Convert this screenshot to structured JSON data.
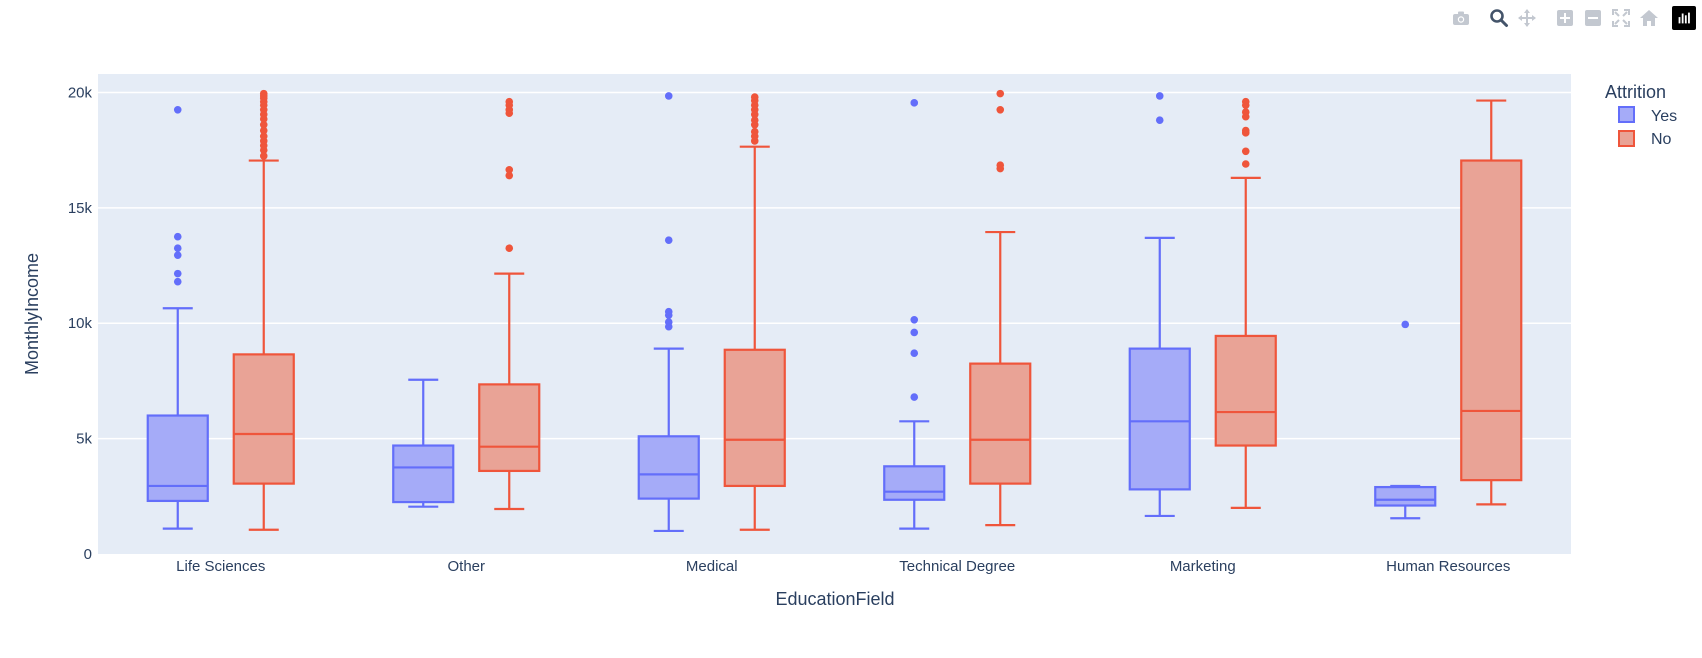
{
  "chart_data": {
    "type": "box",
    "title": "",
    "xlabel": "EducationField",
    "ylabel": "MonthlyIncome",
    "ylim": [
      0,
      20800
    ],
    "yticks": [
      0,
      5000,
      10000,
      15000,
      20000
    ],
    "ytick_labels": [
      "0",
      "5k",
      "10k",
      "15k",
      "20k"
    ],
    "grid": true,
    "categories": [
      "Life Sciences",
      "Other",
      "Medical",
      "Technical Degree",
      "Marketing",
      "Human Resources"
    ],
    "legend": {
      "title": "Attrition",
      "position": "top-right"
    },
    "series": [
      {
        "name": "Yes",
        "line_color": "#636efa",
        "fill_color": "#a5abf8",
        "boxes": [
          {
            "min": 1100,
            "q1": 2300,
            "median": 2950,
            "q3": 6000,
            "max": 10650,
            "outliers": [
              11800,
              12150,
              12950,
              13250,
              13750,
              19250
            ]
          },
          {
            "min": 2050,
            "q1": 2250,
            "median": 3750,
            "q3": 4700,
            "max": 7550,
            "outliers": []
          },
          {
            "min": 1000,
            "q1": 2400,
            "median": 3450,
            "q3": 5100,
            "max": 8900,
            "outliers": [
              9850,
              10050,
              10350,
              10500,
              13600,
              19850
            ]
          },
          {
            "min": 1100,
            "q1": 2350,
            "median": 2700,
            "q3": 3800,
            "max": 5750,
            "outliers": [
              6800,
              8700,
              9600,
              10150,
              19550
            ]
          },
          {
            "min": 1650,
            "q1": 2800,
            "median": 5750,
            "q3": 8900,
            "max": 13700,
            "outliers": [
              18800,
              19850
            ]
          },
          {
            "min": 1550,
            "q1": 2100,
            "median": 2350,
            "q3": 2900,
            "max": 2950,
            "outliers": [
              9950
            ]
          }
        ]
      },
      {
        "name": "No",
        "line_color": "#ef553b",
        "fill_color": "#e9a396",
        "boxes": [
          {
            "min": 1050,
            "q1": 3050,
            "median": 5200,
            "q3": 8650,
            "max": 17050,
            "outliers": [
              17250,
              17500,
              17700,
              17900,
              18100,
              18350,
              18600,
              18850,
              19050,
              19250,
              19450,
              19600,
              19750,
              19850,
              19950
            ]
          },
          {
            "min": 1950,
            "q1": 3600,
            "median": 4650,
            "q3": 7350,
            "max": 12150,
            "outliers": [
              13250,
              16400,
              16650,
              19100,
              19250,
              19450,
              19600
            ]
          },
          {
            "min": 1050,
            "q1": 2950,
            "median": 4950,
            "q3": 8850,
            "max": 17650,
            "outliers": [
              17900,
              18100,
              18300,
              18600,
              18800,
              19050,
              19250,
              19450,
              19650,
              19800
            ]
          },
          {
            "min": 1250,
            "q1": 3050,
            "median": 4950,
            "q3": 8250,
            "max": 13950,
            "outliers": [
              16700,
              16850,
              19250,
              19950
            ]
          },
          {
            "min": 2000,
            "q1": 4700,
            "median": 6150,
            "q3": 9450,
            "max": 16300,
            "outliers": [
              16900,
              17450,
              18250,
              18350,
              18950,
              19150,
              19450,
              19600
            ]
          },
          {
            "min": 2150,
            "q1": 3200,
            "median": 6200,
            "q3": 17050,
            "max": 19650,
            "outliers": []
          }
        ]
      }
    ]
  },
  "colors": {
    "plot_background": "#e5ecf6",
    "grid": "#ffffff",
    "text": "#2a3f5f",
    "modebar_icon": "#c3c8d0"
  },
  "modebar": {
    "icons": [
      "camera-icon",
      "zoom-icon",
      "pan-icon",
      "zoom-in-icon",
      "zoom-out-icon",
      "autoscale-icon",
      "home-icon",
      "plotly-logo-icon"
    ]
  }
}
